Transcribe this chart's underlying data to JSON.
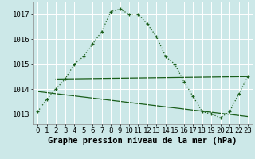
{
  "title": "Graphe pression niveau de la mer (hPa)",
  "background_color": "#cce8e8",
  "grid_color": "#ffffff",
  "line1_x": [
    0,
    1,
    2,
    3,
    4,
    5,
    6,
    7,
    8,
    9,
    10,
    11,
    12,
    13,
    14,
    15,
    16,
    17,
    18,
    19,
    20,
    21,
    22,
    23
  ],
  "line1_y": [
    1013.1,
    1013.6,
    1014.0,
    1014.4,
    1015.0,
    1015.3,
    1015.8,
    1016.3,
    1017.1,
    1017.2,
    1017.0,
    1017.0,
    1016.6,
    1016.1,
    1015.3,
    1015.0,
    1014.3,
    1013.7,
    1013.1,
    1013.0,
    1012.85,
    1013.1,
    1013.8,
    1014.5
  ],
  "line2_x": [
    2,
    23
  ],
  "line2_y": [
    1014.4,
    1014.5
  ],
  "line3_x": [
    0,
    23
  ],
  "line3_y": [
    1013.9,
    1012.9
  ],
  "line_color": "#1a5e1a",
  "ylim": [
    1012.6,
    1017.5
  ],
  "yticks": [
    1013,
    1014,
    1015,
    1016,
    1017
  ],
  "xticks": [
    0,
    1,
    2,
    3,
    4,
    5,
    6,
    7,
    8,
    9,
    10,
    11,
    12,
    13,
    14,
    15,
    16,
    17,
    18,
    19,
    20,
    21,
    22,
    23
  ],
  "tick_fontsize": 6.5,
  "title_fontsize": 7.5
}
